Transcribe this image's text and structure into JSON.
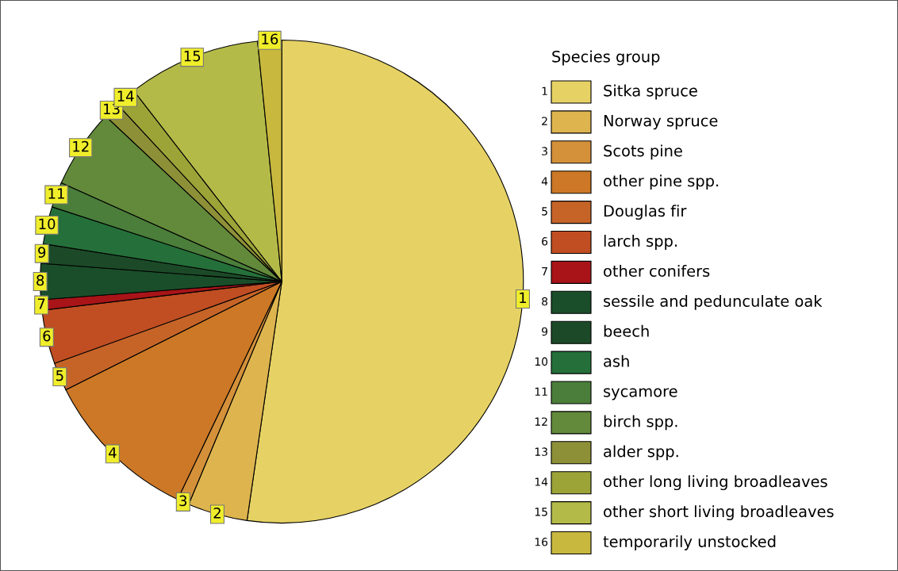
{
  "chart_data": {
    "type": "pie",
    "legend_title": "Species group",
    "legend": "right",
    "categories": [
      "Sitka spruce",
      "Norway spruce",
      "Scots pine",
      "other pine spp.",
      "Douglas fir",
      "larch spp.",
      "other conifers",
      "sessile and pedunculate oak",
      "beech",
      "ash",
      "sycamore",
      "birch spp.",
      "alder spp.",
      "other long living broadleaves",
      "other short living broadleaves",
      "temporarily unstocked"
    ],
    "values": [
      52.3,
      4.0,
      0.8,
      10.5,
      1.9,
      3.6,
      0.7,
      2.4,
      1.3,
      2.5,
      1.7,
      5.3,
      1.1,
      1.4,
      8.9,
      1.6
    ],
    "annotations": [
      {
        "text": "1",
        "x": "Sitka spruce"
      },
      {
        "text": "2",
        "x": "Norway spruce"
      },
      {
        "text": "3",
        "x": "Scots pine"
      },
      {
        "text": "4",
        "x": "other pine spp."
      },
      {
        "text": "5",
        "x": "Douglas fir"
      },
      {
        "text": "6",
        "x": "larch spp."
      },
      {
        "text": "7",
        "x": "other conifers"
      },
      {
        "text": "8",
        "x": "sessile and pedunculate oak"
      },
      {
        "text": "9",
        "x": "beech"
      },
      {
        "text": "10",
        "x": "ash"
      },
      {
        "text": "11",
        "x": "sycamore"
      },
      {
        "text": "12",
        "x": "birch spp."
      },
      {
        "text": "13",
        "x": "alder spp."
      },
      {
        "text": "14",
        "x": "other long living broadleaves"
      },
      {
        "text": "15",
        "x": "other short living broadleaves"
      },
      {
        "text": "16",
        "x": "temporarily unstocked"
      }
    ],
    "colors": [
      "#e6d264",
      "#ddb44e",
      "#d4913a",
      "#cc7826",
      "#c66428",
      "#c04e22",
      "#a81418",
      "#1a4e2a",
      "#1c4a28",
      "#25703a",
      "#4a7e3a",
      "#628a3a",
      "#8e9038",
      "#9ca438",
      "#b4ba48",
      "#c8b83e"
    ]
  }
}
